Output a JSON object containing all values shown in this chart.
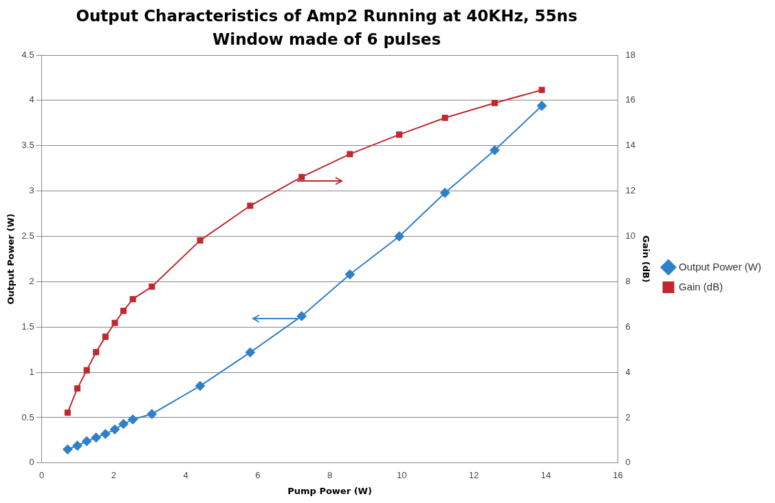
{
  "chart_data": {
    "type": "line",
    "title": "Output Characteristics of Amp2 Running at 40KHz, 55ns Window made of 6 pulses",
    "xlabel": "Pump Power (W)",
    "ylabel": "Output Power (W)",
    "y2label": "Gain (dB)",
    "x": [
      0.72,
      0.99,
      1.25,
      1.51,
      1.77,
      2.03,
      2.27,
      2.53,
      3.06,
      4.4,
      5.79,
      7.22,
      8.56,
      9.93,
      11.2,
      12.58,
      13.89
    ],
    "series": [
      {
        "name": "Output Power (W)",
        "color": "#2f80c8",
        "marker": "diamond",
        "values": [
          0.15,
          0.19,
          0.24,
          0.28,
          0.32,
          0.37,
          0.43,
          0.48,
          0.54,
          0.85,
          1.22,
          1.62,
          2.08,
          2.5,
          2.98,
          3.45,
          3.94
        ]
      },
      {
        "name": "Gain (dB)",
        "color": "#c0282d",
        "marker": "square",
        "axis": "y2",
        "values": [
          2.22,
          3.29,
          4.09,
          4.89,
          5.57,
          6.18,
          6.71,
          7.23,
          7.78,
          9.82,
          11.35,
          12.62,
          13.63,
          14.49,
          15.23,
          15.88,
          16.46
        ]
      }
    ],
    "xlim": [
      0,
      16
    ],
    "xticks": [
      0,
      2,
      4,
      6,
      8,
      10,
      12,
      14,
      16
    ],
    "ylim": [
      0,
      4.5
    ],
    "yticks": [
      0,
      0.5,
      1,
      1.5,
      2,
      2.5,
      3,
      3.5,
      4,
      4.5
    ],
    "y2lim": [
      0,
      18
    ],
    "y2ticks": [
      0,
      2,
      4,
      6,
      8,
      10,
      12,
      14,
      16,
      18
    ],
    "grid": "y",
    "legend": "right"
  }
}
